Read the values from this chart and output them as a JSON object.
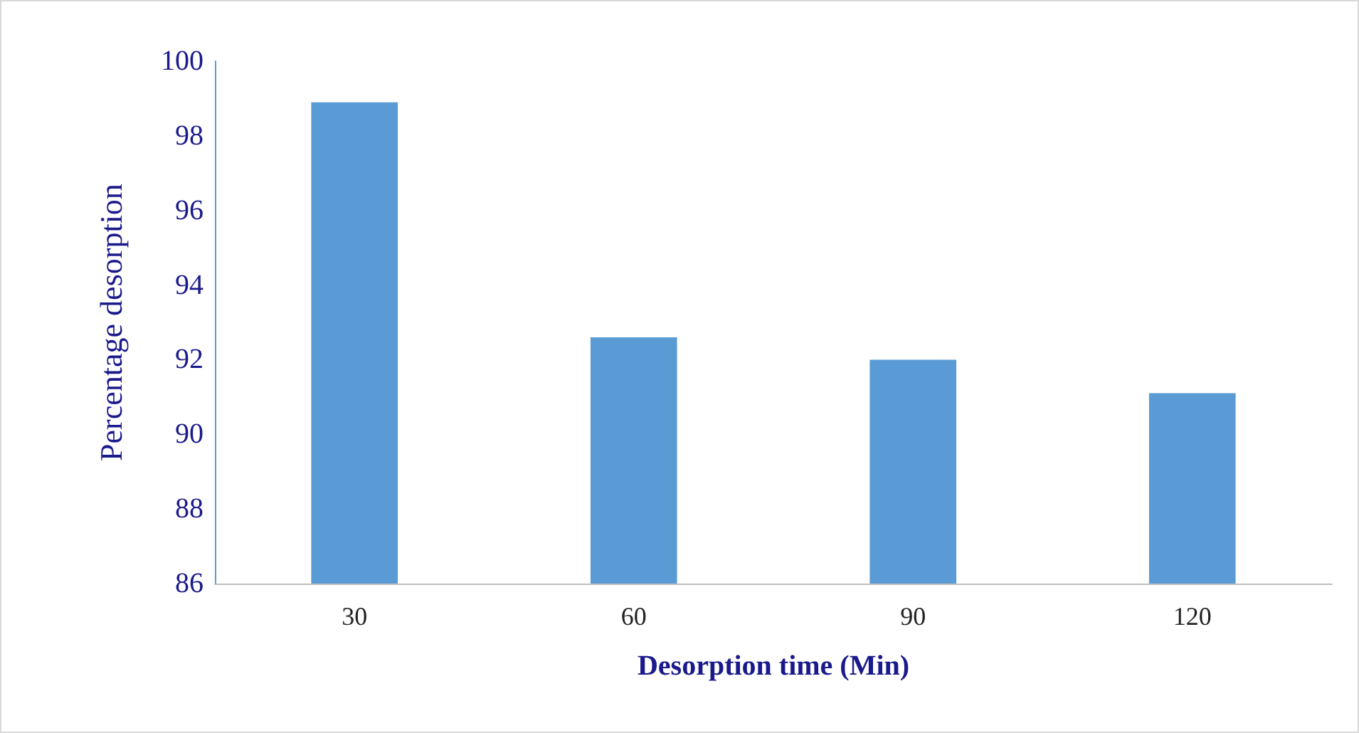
{
  "chart_data": {
    "type": "bar",
    "xlabel": "Desorption time (Min)",
    "ylabel": "Percentage desorption",
    "categories": [
      "30",
      "60",
      "90",
      "120"
    ],
    "values": [
      98.9,
      92.6,
      92.0,
      91.1
    ],
    "color": "#5b9bd5",
    "ylim": [
      86,
      100
    ],
    "yticks": [
      86,
      88,
      90,
      92,
      94,
      96,
      98,
      100
    ],
    "grid": false
  }
}
